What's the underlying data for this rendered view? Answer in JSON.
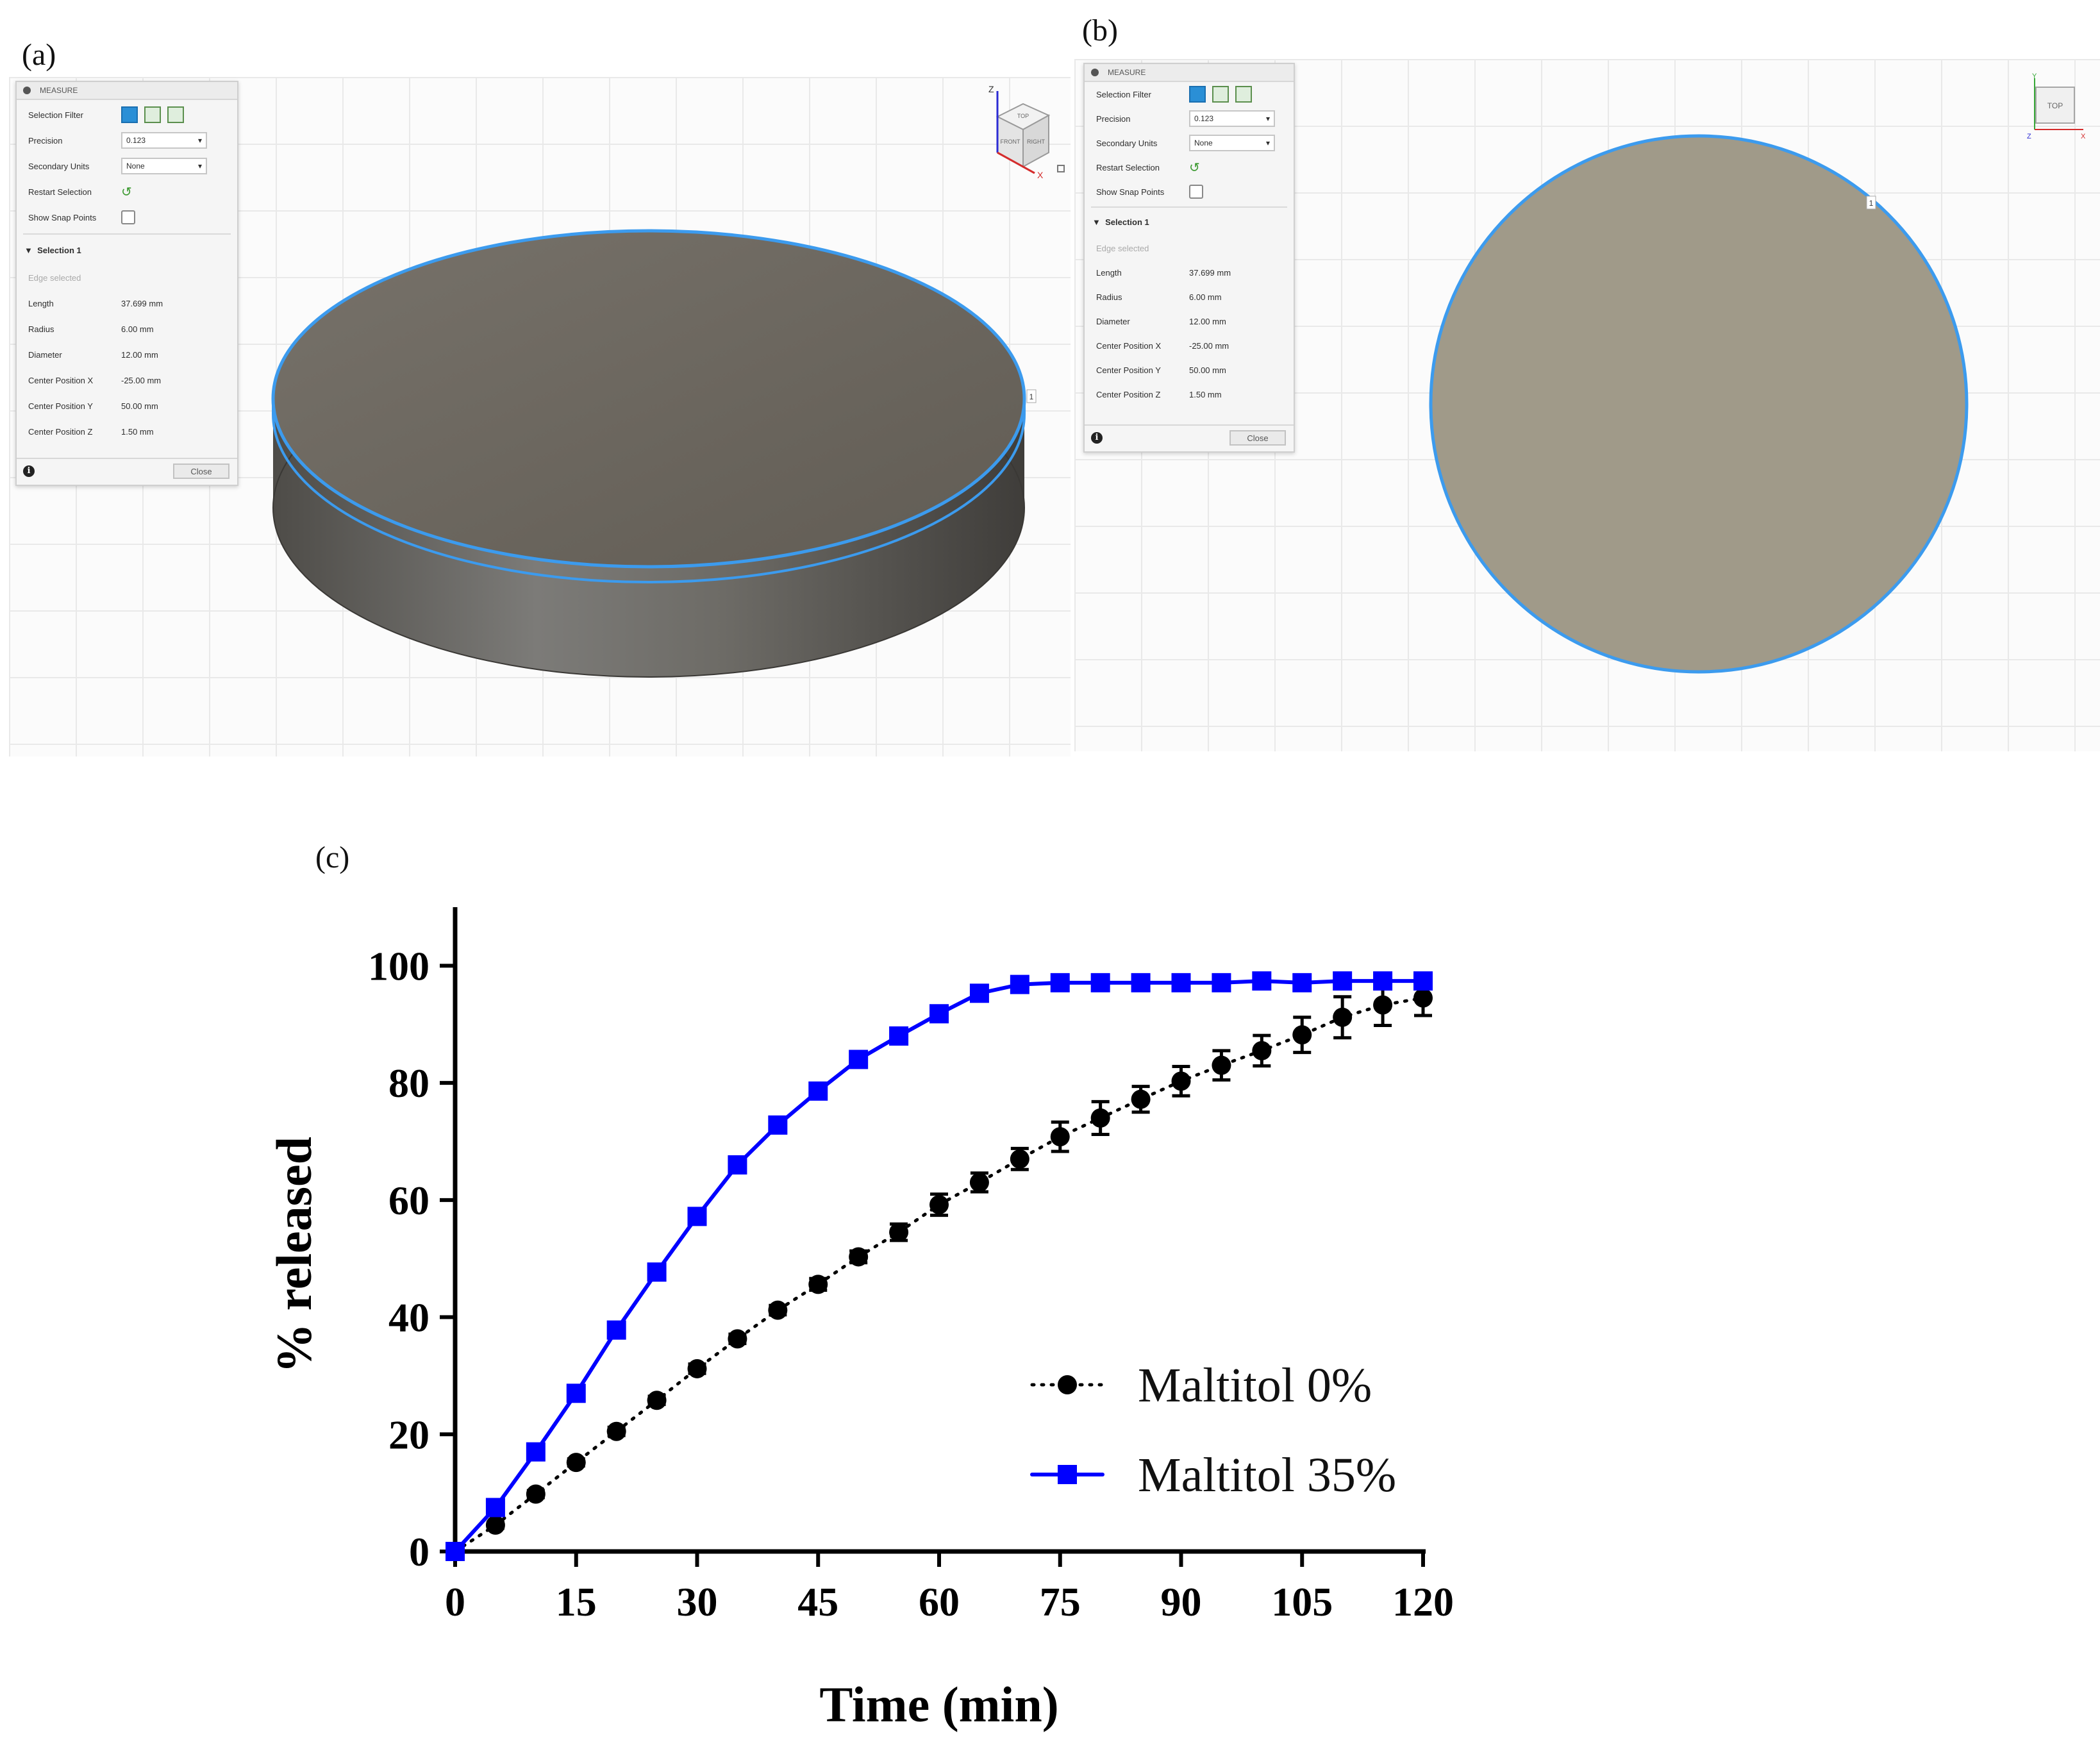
{
  "panel_a": {
    "letter": "(a)",
    "view_cube": {
      "axis_z": "Z",
      "axis_x": "X",
      "faces": [
        "FRONT",
        "RIGHT",
        "TOP"
      ]
    },
    "point_marker": "1"
  },
  "panel_b": {
    "letter": "(b)",
    "view_cube": {
      "face": "TOP",
      "axis_y": "Y",
      "axis_x": "X",
      "axis_z": "Z"
    },
    "point_marker": "1"
  },
  "measure_panel": {
    "title": "MEASURE",
    "selection_filter_label": "Selection Filter",
    "selection_filter_icons": [
      "select-body-icon",
      "select-face-icon",
      "select-edge-icon"
    ],
    "precision_label": "Precision",
    "precision_value": "0.123",
    "secondary_units_label": "Secondary Units",
    "secondary_units_value": "None",
    "restart_selection_label": "Restart Selection",
    "show_snap_points_label": "Show Snap Points",
    "section_title": "Selection 1",
    "edge_selected": "Edge selected",
    "properties": [
      {
        "label": "Length",
        "value": "37.699 mm"
      },
      {
        "label": "Radius",
        "value": "6.00 mm"
      },
      {
        "label": "Diameter",
        "value": "12.00 mm"
      },
      {
        "label": "Center Position X",
        "value": "-25.00 mm"
      },
      {
        "label": "Center Position Y",
        "value": "50.00 mm"
      },
      {
        "label": "Center Position Z",
        "value": "1.50 mm"
      }
    ],
    "close_label": "Close"
  },
  "panel_c": {
    "letter": "(c)"
  },
  "colors": {
    "accent_blue": "#0000ff",
    "edge_highlight": "#3c9bee",
    "disk_top": "#6f6a62",
    "disk_top_view": "#a09a89",
    "marker_black": "#000000"
  },
  "chart_data": {
    "type": "line",
    "title": "",
    "xlabel": "Time (min)",
    "ylabel": "% released",
    "xlim": [
      0,
      120
    ],
    "ylim": [
      0,
      110
    ],
    "xticks": [
      0,
      15,
      30,
      45,
      60,
      75,
      90,
      105,
      120
    ],
    "yticks": [
      0,
      20,
      40,
      60,
      80,
      100
    ],
    "legend_position": "lower-right",
    "series": [
      {
        "name": "Maltitol 0%",
        "style": "dotted",
        "marker": "circle",
        "color": "#000000",
        "x": [
          0,
          5,
          10,
          15,
          20,
          25,
          30,
          35,
          40,
          45,
          50,
          55,
          60,
          65,
          70,
          75,
          80,
          85,
          90,
          95,
          100,
          105,
          110,
          115,
          120
        ],
        "y": [
          0,
          4.5,
          9.8,
          15.2,
          20.5,
          25.8,
          31.2,
          36.3,
          41.2,
          45.6,
          50.3,
          54.5,
          59.2,
          63.0,
          67.0,
          70.8,
          74.0,
          77.2,
          80.3,
          83.0,
          85.5,
          88.2,
          91.2,
          93.3,
          94.5
        ],
        "error": [
          0,
          0.5,
          0.6,
          0.6,
          0.7,
          0.7,
          0.8,
          0.8,
          0.8,
          1.0,
          1.0,
          1.4,
          1.8,
          1.6,
          1.8,
          2.5,
          2.8,
          2.2,
          2.5,
          2.5,
          2.6,
          3.0,
          3.5,
          3.5,
          3.0
        ]
      },
      {
        "name": "Maltitol 35%",
        "style": "solid",
        "marker": "square",
        "color": "#0000ff",
        "x": [
          0,
          5,
          10,
          15,
          20,
          25,
          30,
          35,
          40,
          45,
          50,
          55,
          60,
          65,
          70,
          75,
          80,
          85,
          90,
          95,
          100,
          105,
          110,
          115,
          120
        ],
        "y": [
          0,
          7.5,
          17.0,
          27.0,
          37.8,
          47.7,
          57.2,
          66.0,
          72.8,
          78.6,
          84.0,
          88.0,
          91.8,
          95.3,
          96.8,
          97.1,
          97.1,
          97.1,
          97.1,
          97.1,
          97.4,
          97.1,
          97.4,
          97.4,
          97.4
        ],
        "error": []
      }
    ]
  }
}
